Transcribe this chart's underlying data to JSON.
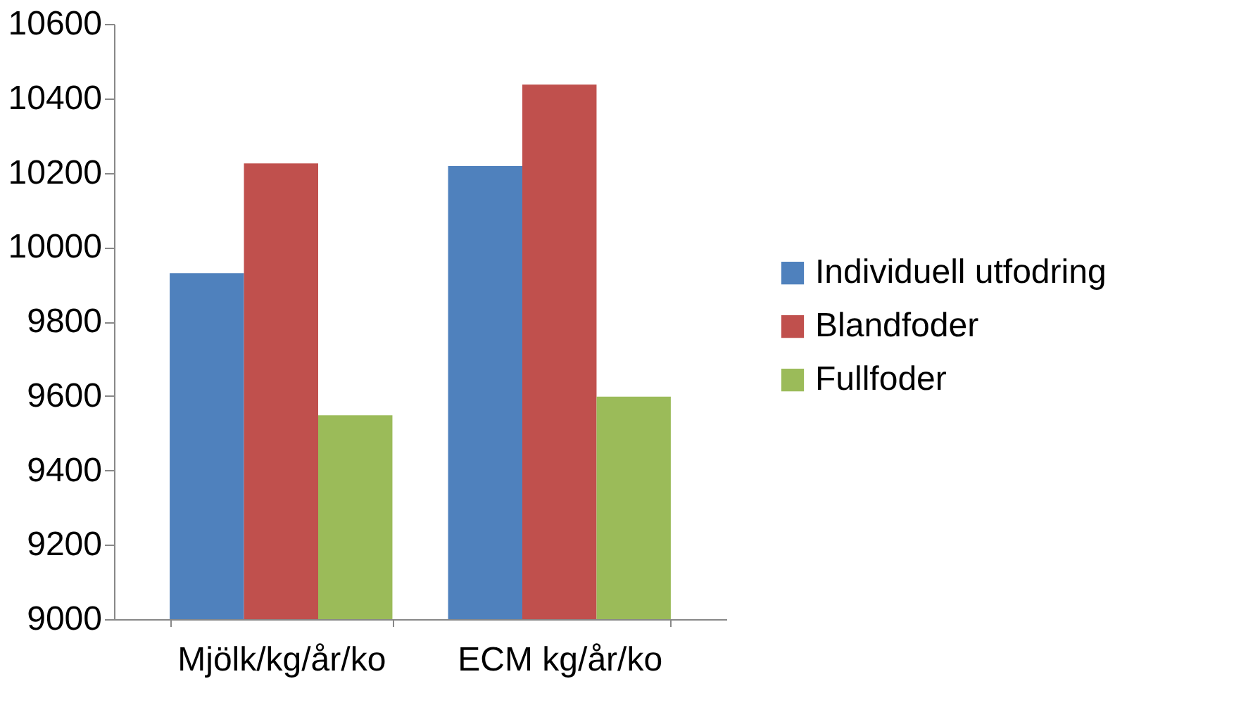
{
  "chart_data": {
    "type": "bar",
    "categories": [
      "Mjölk/kg/år/ko",
      "ECM kg/år/ko"
    ],
    "series": [
      {
        "name": "Individuell utfodring",
        "color": "#4f81bd",
        "values": [
          9930,
          10218
        ]
      },
      {
        "name": "Blandfoder",
        "color": "#c0504d",
        "values": [
          10225,
          10437
        ]
      },
      {
        "name": "Fullfoder",
        "color": "#9bbb59",
        "values": [
          9548,
          9598
        ]
      }
    ],
    "ylim": [
      9000,
      10600
    ],
    "yticks": [
      9000,
      9200,
      9400,
      9600,
      9800,
      10000,
      10200,
      10400,
      10600
    ],
    "grid": false,
    "legend": "right"
  }
}
